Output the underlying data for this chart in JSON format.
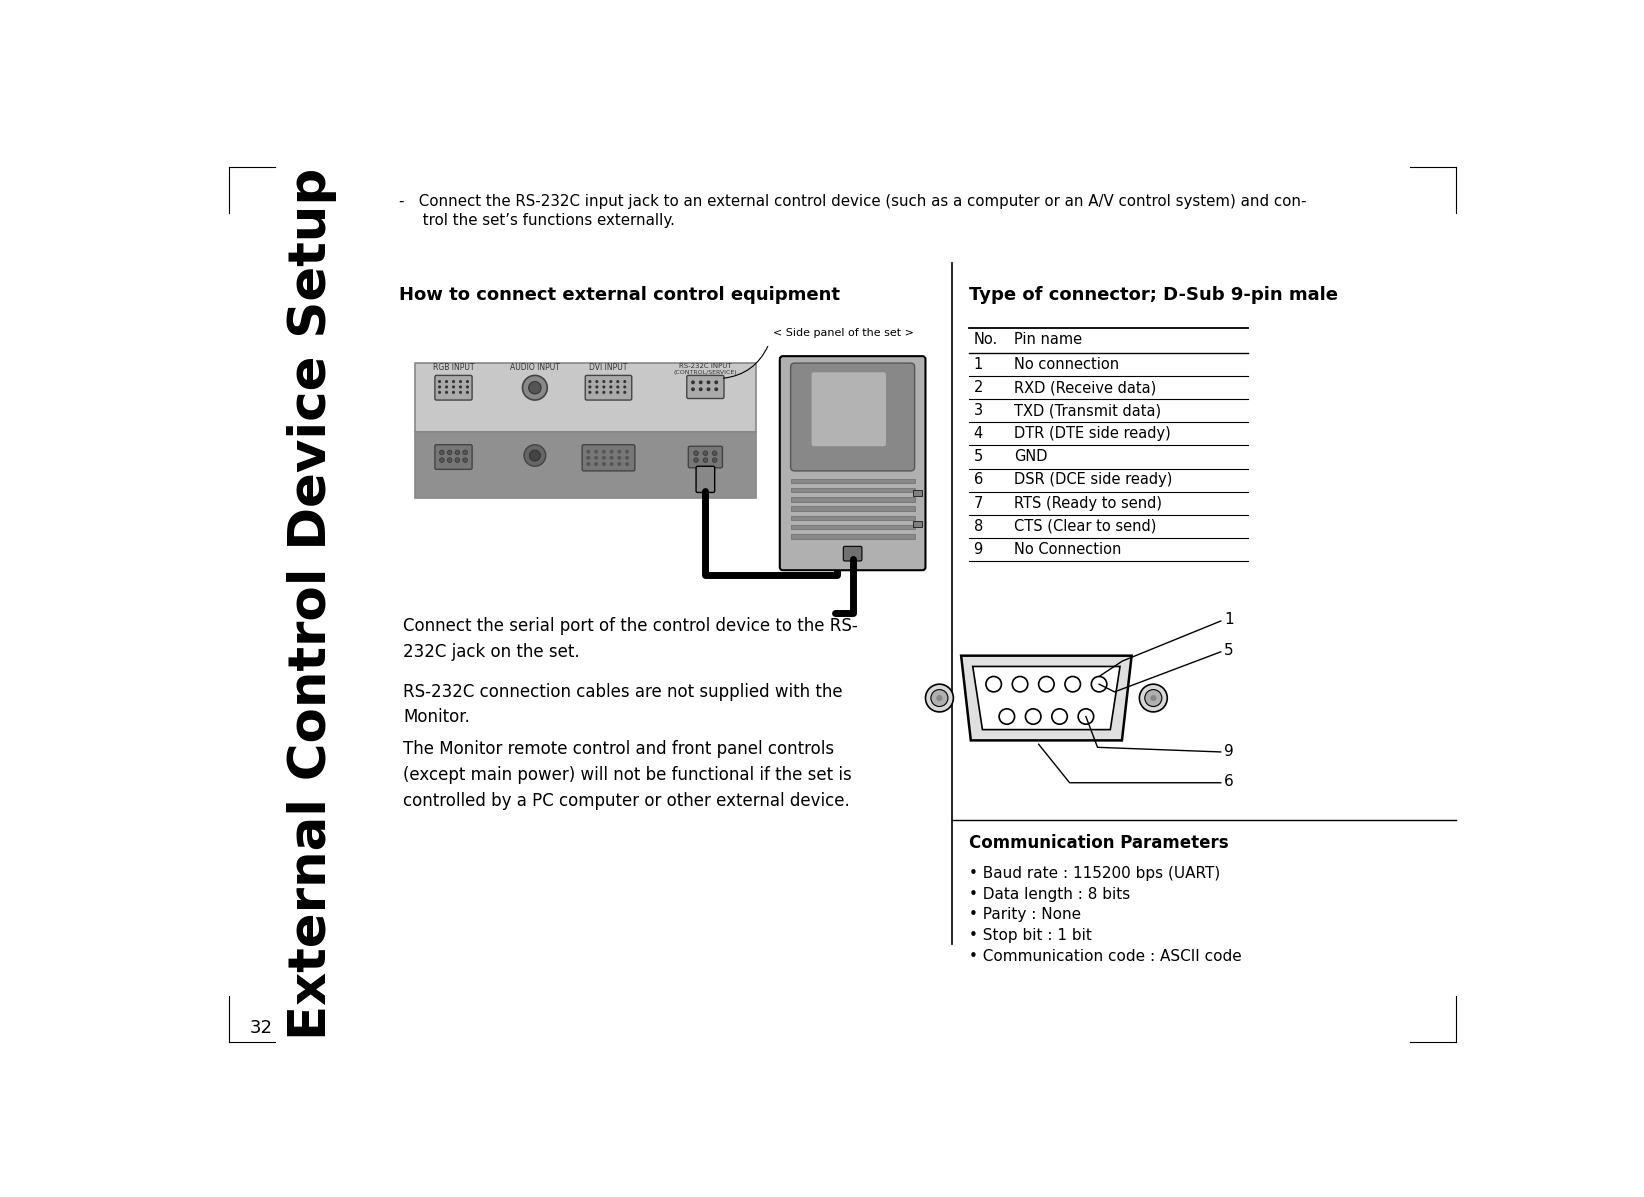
{
  "bg_color": "#ffffff",
  "page_num": "32",
  "sidebar_text": "External Control Device Setup",
  "top_text_line1": "-   Connect the RS-232C input jack to an external control device (such as a computer or an A/V control system) and con-",
  "top_text_line2": "     trol the set’s functions externally.",
  "left_heading": "How to connect external control equipment",
  "right_heading": "Type of connector; D-Sub 9-pin male",
  "pin_table_headers": [
    "No.",
    "Pin name"
  ],
  "pin_table_rows": [
    [
      "1",
      "No connection"
    ],
    [
      "2",
      "RXD (Receive data)"
    ],
    [
      "3",
      "TXD (Transmit data)"
    ],
    [
      "4",
      "DTR (DTE side ready)"
    ],
    [
      "5",
      "GND"
    ],
    [
      "6",
      "DSR (DCE side ready)"
    ],
    [
      "7",
      "RTS (Ready to send)"
    ],
    [
      "8",
      "CTS (Clear to send)"
    ],
    [
      "9",
      "No Connection"
    ]
  ],
  "left_text1": "Connect the serial port of the control device to the RS-\n232C jack on the set.",
  "left_text2": "RS-232C connection cables are not supplied with the\nMonitor.",
  "left_text3": "The Monitor remote control and front panel controls\n(except main power) will not be functional if the set is\ncontrolled by a PC computer or other external device.",
  "comm_params_title": "Communication Parameters",
  "comm_params": [
    "• Baud rate : 115200 bps (UART)",
    "• Data length : 8 bits",
    "• Parity : None",
    "• Stop bit : 1 bit",
    "• Communication code : ASCII code"
  ]
}
